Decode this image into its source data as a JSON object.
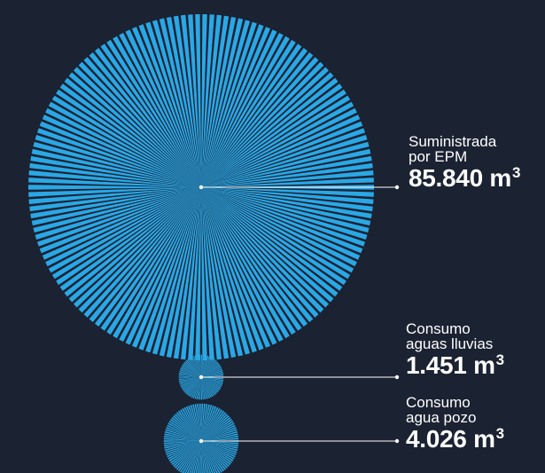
{
  "chart_data": {
    "type": "bubble",
    "unit": "m³",
    "series": [
      {
        "label_lines": [
          "Suministrada",
          "por EPM"
        ],
        "value_text": "85.840",
        "value": 85840,
        "unit": "m",
        "unit_exp": "3"
      },
      {
        "label_lines": [
          "Consumo",
          "aguas lluvias"
        ],
        "value_text": "1.451",
        "value": 1451,
        "unit": "m",
        "unit_exp": "3"
      },
      {
        "label_lines": [
          "Consumo",
          "agua pozo"
        ],
        "value_text": "4.026",
        "value": 4026,
        "unit": "m",
        "unit_exp": "3"
      }
    ],
    "colors": {
      "background": "#1b2232",
      "bubble": "#2aa8e6",
      "line": "#ffffff"
    }
  }
}
